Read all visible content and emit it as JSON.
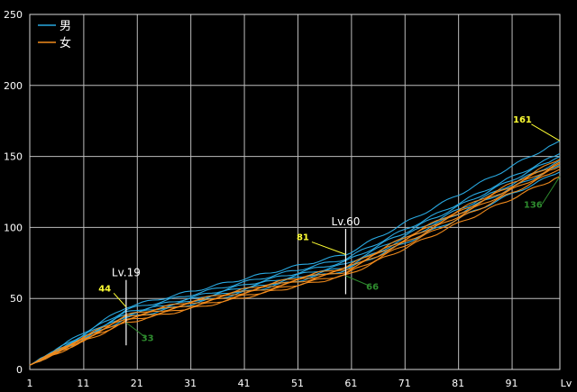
{
  "chart_data": {
    "type": "line",
    "title": "",
    "xlabel": "Lv",
    "ylabel": "",
    "xlim": [
      1,
      100
    ],
    "ylim": [
      0,
      250
    ],
    "x_ticks": [
      1,
      11,
      21,
      31,
      41,
      51,
      61,
      71,
      81,
      91
    ],
    "y_ticks": [
      0,
      50,
      100,
      150,
      200,
      250
    ],
    "grid": true,
    "legend_position": "top-left",
    "legend": [
      {
        "label": "男",
        "color": "#29a8e0"
      },
      {
        "label": "女",
        "color": "#f08a1c"
      }
    ],
    "groups": [
      {
        "name": "男",
        "color": "#29a8e0",
        "series": [
          {
            "points": [
              [
                1,
                3
              ],
              [
                19,
                44
              ],
              [
                60,
                81
              ],
              [
                100,
                161
              ]
            ]
          },
          {
            "points": [
              [
                1,
                3
              ],
              [
                19,
                42
              ],
              [
                60,
                78
              ],
              [
                100,
                152
              ]
            ]
          },
          {
            "points": [
              [
                1,
                3
              ],
              [
                19,
                40
              ],
              [
                60,
                76
              ],
              [
                100,
                150
              ]
            ]
          },
          {
            "points": [
              [
                1,
                3
              ],
              [
                19,
                39
              ],
              [
                60,
                74
              ],
              [
                100,
                147
              ]
            ]
          },
          {
            "points": [
              [
                1,
                3
              ],
              [
                19,
                38
              ],
              [
                60,
                72
              ],
              [
                100,
                144
              ]
            ]
          },
          {
            "points": [
              [
                1,
                3
              ],
              [
                19,
                36
              ],
              [
                60,
                70
              ],
              [
                100,
                139
              ]
            ]
          }
        ]
      },
      {
        "name": "女",
        "color": "#f08a1c",
        "series": [
          {
            "points": [
              [
                1,
                3
              ],
              [
                19,
                38
              ],
              [
                60,
                72
              ],
              [
                100,
                148
              ]
            ]
          },
          {
            "points": [
              [
                1,
                3
              ],
              [
                19,
                37
              ],
              [
                60,
                71
              ],
              [
                100,
                146
              ]
            ]
          },
          {
            "points": [
              [
                1,
                3
              ],
              [
                19,
                36
              ],
              [
                60,
                70
              ],
              [
                100,
                145
              ]
            ]
          },
          {
            "points": [
              [
                1,
                3
              ],
              [
                19,
                35
              ],
              [
                60,
                69
              ],
              [
                100,
                143
              ]
            ]
          },
          {
            "points": [
              [
                1,
                3
              ],
              [
                19,
                34
              ],
              [
                60,
                67
              ],
              [
                100,
                141
              ]
            ]
          },
          {
            "points": [
              [
                1,
                3
              ],
              [
                19,
                33
              ],
              [
                60,
                66
              ],
              [
                100,
                136
              ]
            ]
          }
        ]
      }
    ],
    "markers": [
      {
        "label": "Lv.19",
        "x": 19,
        "y_top": 63,
        "y_bottom": 17
      },
      {
        "label": "Lv.60",
        "x": 60,
        "y_top": 99,
        "y_bottom": 53
      }
    ],
    "annotations": [
      {
        "text": "44",
        "color": "#ffff33",
        "x": 15,
        "y": 55,
        "point_x": 19,
        "point_y": 44
      },
      {
        "text": "33",
        "color": "#2e8b2e",
        "x": 23,
        "y": 20,
        "point_x": 19,
        "point_y": 33
      },
      {
        "text": "81",
        "color": "#ffff33",
        "x": 52,
        "y": 91,
        "point_x": 60,
        "point_y": 81
      },
      {
        "text": "66",
        "color": "#2e8b2e",
        "x": 65,
        "y": 56,
        "point_x": 60,
        "point_y": 66
      },
      {
        "text": "161",
        "color": "#ffff33",
        "x": 93,
        "y": 174,
        "point_x": 100,
        "point_y": 161
      },
      {
        "text": "136",
        "color": "#2e8b2e",
        "x": 95,
        "y": 114,
        "point_x": 100,
        "point_y": 136
      }
    ]
  }
}
